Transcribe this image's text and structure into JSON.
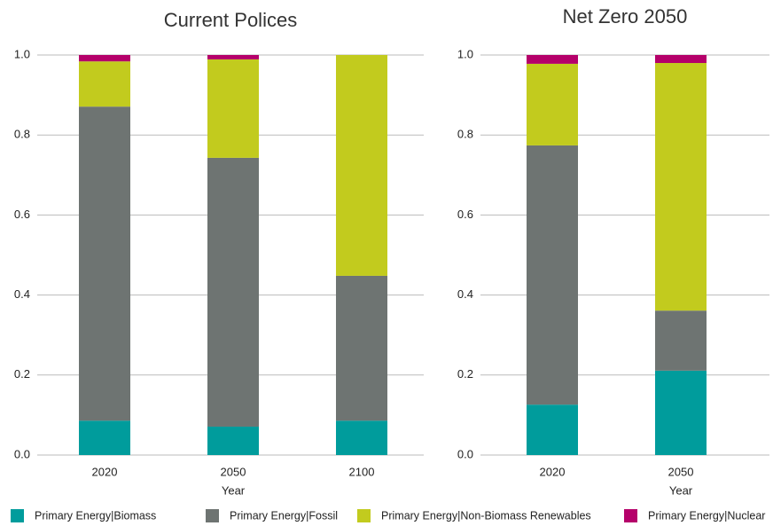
{
  "chart_data": [
    {
      "type": "stacked_bar",
      "title": "Current Polices",
      "x_label": "Year",
      "categories": [
        "2020",
        "2050",
        "2100"
      ],
      "ylim": [
        0,
        1
      ],
      "yticks": [
        {
          "value": 0,
          "label": "0.0"
        },
        0.2,
        0.4,
        0.6,
        0.8,
        {
          "value": 1,
          "label": "1.0"
        }
      ],
      "series": [
        {
          "name": "Primary Energy|Biomass",
          "color": "#009c9c",
          "values": [
            0.086,
            0.071,
            0.086
          ]
        },
        {
          "name": "Primary Energy|Fossil",
          "color": "#6e7472",
          "values": [
            0.785,
            0.672,
            0.362
          ]
        },
        {
          "name": "Primary Energy|Non-Biomass Renewables",
          "color": "#c2cb1e",
          "values": [
            0.113,
            0.246,
            0.552
          ]
        },
        {
          "name": "Primary Energy|Nuclear",
          "color": "#b5006a",
          "values": [
            0.016,
            0.011,
            0
          ]
        }
      ]
    },
    {
      "type": "stacked_bar",
      "title": "Net Zero 2050",
      "x_label": "Year",
      "categories": [
        "2020",
        "2050"
      ],
      "ylim": [
        0,
        1
      ],
      "yticks": [
        {
          "value": 0,
          "label": "0.0"
        },
        0.2,
        0.4,
        0.6,
        0.8,
        {
          "value": 1,
          "label": "1.0"
        }
      ],
      "series": [
        {
          "color": "#009c9c",
          "values": [
            0.126,
            0.211
          ]
        },
        {
          "color": "#6e7472",
          "values": [
            0.648,
            0.15
          ]
        },
        {
          "color": "#c2cb1e",
          "values": [
            0.204,
            0.619
          ]
        },
        {
          "color": "#b5006a",
          "values": [
            0.022,
            0.02
          ]
        }
      ]
    }
  ]
}
